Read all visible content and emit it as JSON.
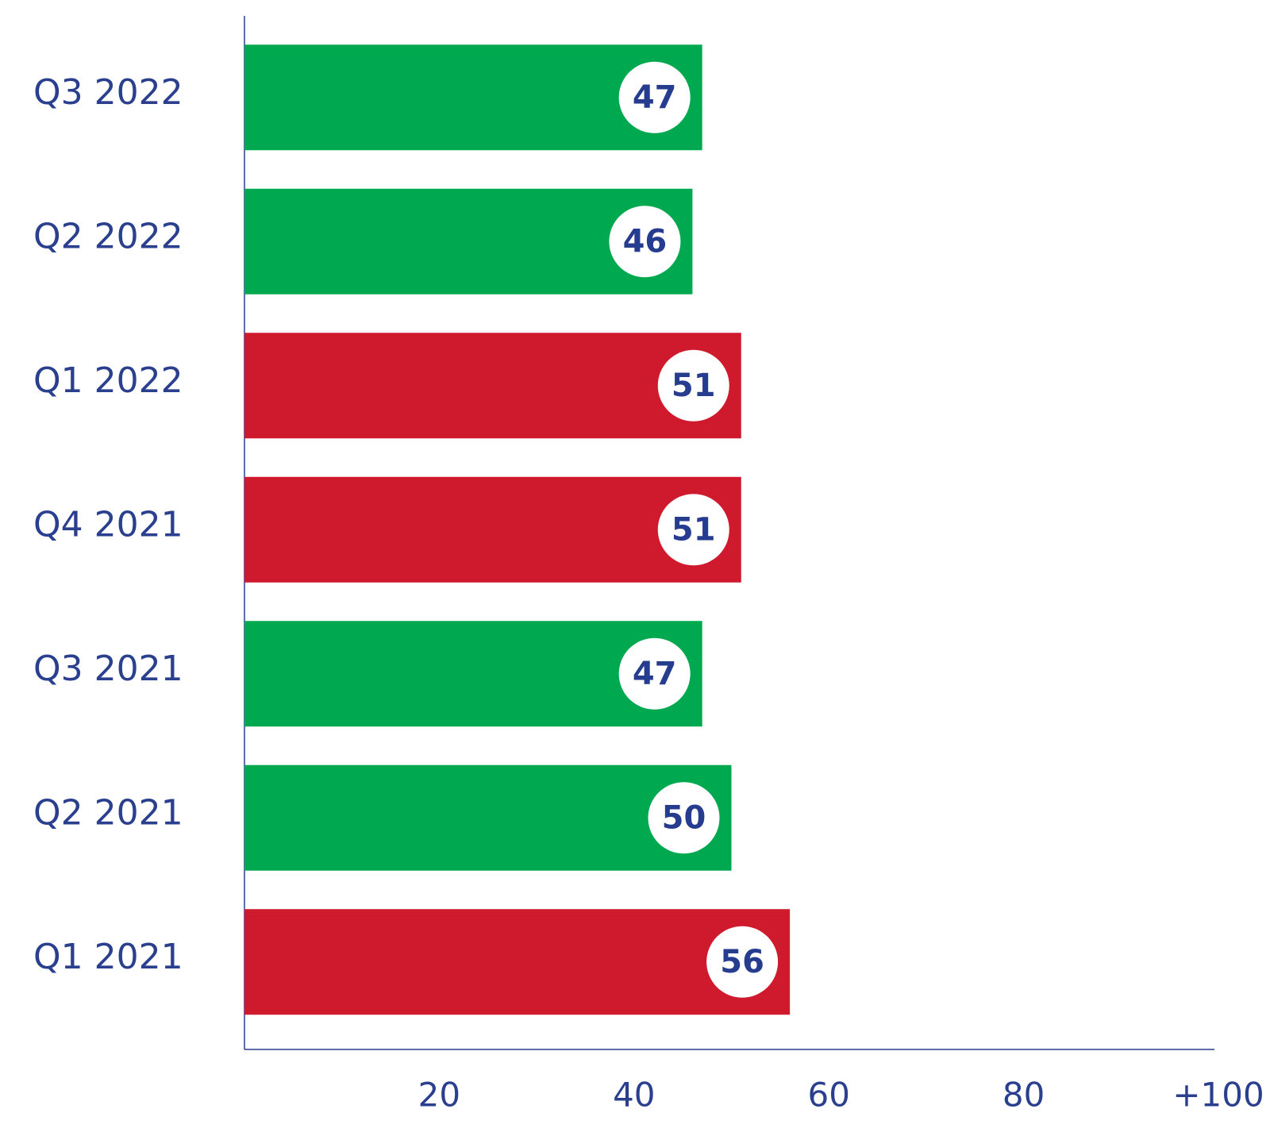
{
  "chart_data": {
    "type": "bar",
    "orientation": "horizontal",
    "categories": [
      "Q3 2022",
      "Q2 2022",
      "Q1 2022",
      "Q4 2021",
      "Q3 2021",
      "Q2 2021",
      "Q1 2021"
    ],
    "values": [
      47,
      46,
      51,
      51,
      47,
      50,
      56
    ],
    "colors": [
      "#00a94f",
      "#00a94f",
      "#cf1a2e",
      "#cf1a2e",
      "#00a94f",
      "#00a94f",
      "#cf1a2e"
    ],
    "xlim": [
      0,
      100
    ],
    "xticks": [
      20,
      40,
      60,
      80,
      {
        "value": 100,
        "label": "+100"
      }
    ]
  }
}
